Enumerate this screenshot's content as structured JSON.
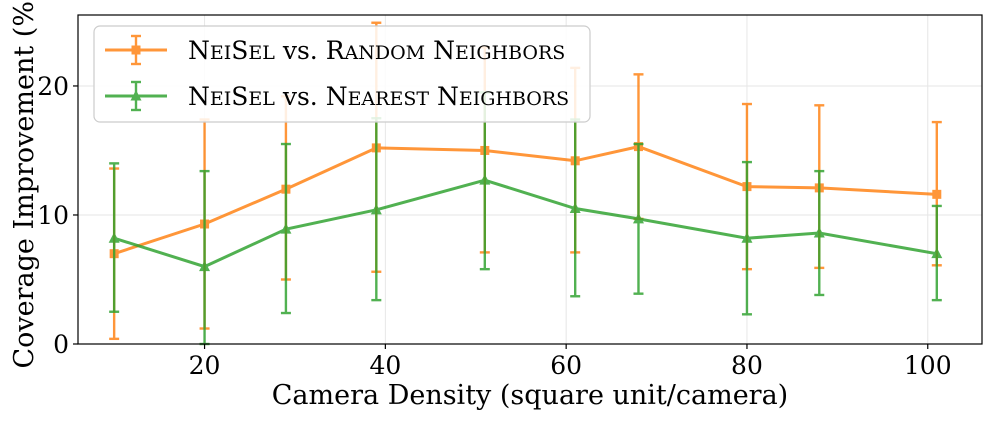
{
  "chart_data": {
    "type": "line",
    "xlabel": "Camera Density (square unit/camera)",
    "ylabel": "Coverage Improvement (%)",
    "xlim": [
      6,
      106
    ],
    "ylim": [
      0,
      25.5
    ],
    "xticks": [
      20,
      40,
      60,
      80,
      100
    ],
    "yticks": [
      0,
      10,
      20
    ],
    "grid": true,
    "legend_position": "top-left",
    "x": [
      10,
      20,
      29,
      39,
      51,
      61,
      68,
      80,
      88,
      101
    ],
    "series": [
      {
        "name": "NeiSel vs. Random Neighbors",
        "name_parts": [
          [
            "N",
            "big"
          ],
          [
            "ei",
            "sc"
          ],
          [
            "S",
            "big"
          ],
          [
            "el",
            "sc"
          ],
          [
            " vs. ",
            "big"
          ],
          [
            "R",
            "big"
          ],
          [
            "andom",
            "sc"
          ],
          [
            " N",
            "big"
          ],
          [
            "eighbors",
            "sc"
          ]
        ],
        "color": "#ff7f0e",
        "marker": "square",
        "values": [
          7.0,
          9.3,
          12.0,
          15.2,
          15.0,
          14.2,
          15.3,
          12.2,
          12.1,
          11.6
        ],
        "err_low": [
          0.4,
          1.2,
          5.0,
          5.6,
          7.1,
          7.1,
          9.7,
          5.8,
          5.9,
          6.1
        ],
        "err_high": [
          13.6,
          17.4,
          19.2,
          24.9,
          23.0,
          21.4,
          20.9,
          18.6,
          18.5,
          17.2
        ]
      },
      {
        "name": "NeiSel vs. Nearest Neighbors",
        "name_parts": [
          [
            "N",
            "big"
          ],
          [
            "ei",
            "sc"
          ],
          [
            "S",
            "big"
          ],
          [
            "el",
            "sc"
          ],
          [
            " vs. ",
            "big"
          ],
          [
            "N",
            "big"
          ],
          [
            "earest",
            "sc"
          ],
          [
            " N",
            "big"
          ],
          [
            "eighbors",
            "sc"
          ]
        ],
        "color": "#2ca02c",
        "marker": "triangle",
        "values": [
          8.2,
          6.0,
          8.9,
          10.4,
          12.7,
          10.5,
          9.7,
          8.2,
          8.6,
          7.0
        ],
        "err_low": [
          2.5,
          0.0,
          2.4,
          3.4,
          5.8,
          3.7,
          3.9,
          2.3,
          3.8,
          3.4
        ],
        "err_high": [
          14.0,
          13.4,
          15.5,
          17.5,
          19.5,
          17.4,
          15.5,
          14.1,
          13.4,
          10.7
        ]
      }
    ]
  }
}
